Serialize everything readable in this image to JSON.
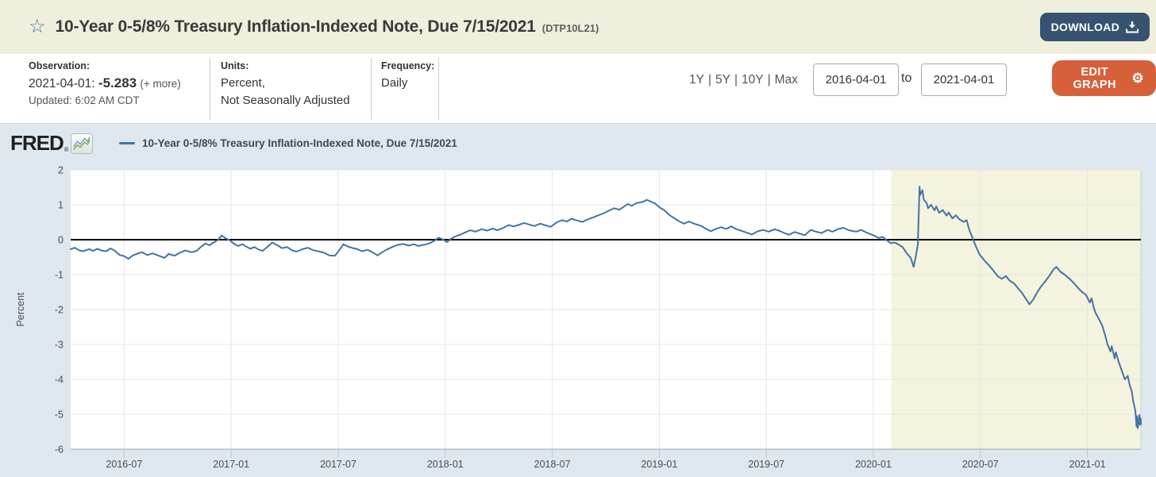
{
  "header": {
    "title": "10-Year 0-5/8% Treasury Inflation-Indexed Note, Due 7/15/2021",
    "series_id": "(DTP10L21)",
    "star_icon": "☆",
    "download_label": "DOWNLOAD"
  },
  "meta": {
    "observation_label": "Observation:",
    "observation_date": "2021-04-01:",
    "observation_value": "-5.283",
    "observation_more": "(+ more)",
    "updated": "Updated: 6:02 AM CDT",
    "units_label": "Units:",
    "units_line1": "Percent,",
    "units_line2": "Not Seasonally Adjusted",
    "frequency_label": "Frequency:",
    "frequency_value": "Daily",
    "range_links": [
      "1Y",
      "5Y",
      "10Y",
      "Max"
    ],
    "range_separator": "|",
    "date_from": "2016-04-01",
    "to_label": "to",
    "date_to": "2021-04-01",
    "edit_graph_label": "EDIT GRAPH",
    "gear_icon": "⚙"
  },
  "chart": {
    "logo_text": "FRED",
    "logo_reg": "®",
    "legend_label": "10-Year 0-5/8% Treasury Inflation-Indexed Note, Due 7/15/2021"
  },
  "colors": {
    "header_bg": "#f0efde",
    "download_bg": "#385271",
    "edit_graph_bg": "#d6603a",
    "panel_bg": "#dee7ee",
    "line": "#4572a7",
    "recession_band": "#f4f3dd"
  },
  "chart_data": {
    "type": "line",
    "title": "10-Year 0-5/8% Treasury Inflation-Indexed Note, Due 7/15/2021",
    "ylabel": "Percent",
    "ylim": [
      -6,
      2
    ],
    "yticks": [
      2,
      1,
      0,
      -1,
      -2,
      -3,
      -4,
      -5,
      -6
    ],
    "xtick_labels": [
      "2016-07",
      "2017-01",
      "2017-07",
      "2018-01",
      "2018-07",
      "2019-01",
      "2019-07",
      "2020-01",
      "2020-07",
      "2021-01"
    ],
    "x_range": [
      "2016-04-01",
      "2021-04-01"
    ],
    "grid": true,
    "legend_position": "top-left",
    "line_color": "#4572a7",
    "zero_line_color": "#000000",
    "recession_band": {
      "start": "2020-02-01",
      "end": "2021-04-01",
      "color": "#f4f3dd"
    },
    "series": [
      {
        "name": "10-Year 0-5/8% Treasury Inflation-Indexed Note, Due 7/15/2021",
        "points": [
          [
            "2016-04-01",
            -0.27
          ],
          [
            "2016-04-08",
            -0.23
          ],
          [
            "2016-04-15",
            -0.3
          ],
          [
            "2016-04-22",
            -0.33
          ],
          [
            "2016-05-02",
            -0.27
          ],
          [
            "2016-05-09",
            -0.32
          ],
          [
            "2016-05-16",
            -0.26
          ],
          [
            "2016-05-23",
            -0.31
          ],
          [
            "2016-06-01",
            -0.33
          ],
          [
            "2016-06-08",
            -0.25
          ],
          [
            "2016-06-15",
            -0.31
          ],
          [
            "2016-06-24",
            -0.44
          ],
          [
            "2016-07-01",
            -0.47
          ],
          [
            "2016-07-08",
            -0.55
          ],
          [
            "2016-07-15",
            -0.46
          ],
          [
            "2016-07-22",
            -0.41
          ],
          [
            "2016-08-01",
            -0.36
          ],
          [
            "2016-08-10",
            -0.44
          ],
          [
            "2016-08-19",
            -0.39
          ],
          [
            "2016-09-01",
            -0.47
          ],
          [
            "2016-09-09",
            -0.52
          ],
          [
            "2016-09-16",
            -0.41
          ],
          [
            "2016-09-26",
            -0.46
          ],
          [
            "2016-10-05",
            -0.37
          ],
          [
            "2016-10-14",
            -0.31
          ],
          [
            "2016-10-25",
            -0.36
          ],
          [
            "2016-11-03",
            -0.32
          ],
          [
            "2016-11-10",
            -0.21
          ],
          [
            "2016-11-18",
            -0.11
          ],
          [
            "2016-11-25",
            -0.16
          ],
          [
            "2016-12-02",
            -0.07
          ],
          [
            "2016-12-09",
            -0.01
          ],
          [
            "2016-12-15",
            0.12
          ],
          [
            "2016-12-22",
            0.04
          ],
          [
            "2016-12-30",
            -0.03
          ],
          [
            "2017-01-06",
            -0.12
          ],
          [
            "2017-01-13",
            -0.18
          ],
          [
            "2017-01-20",
            -0.13
          ],
          [
            "2017-01-27",
            -0.2
          ],
          [
            "2017-02-03",
            -0.26
          ],
          [
            "2017-02-10",
            -0.21
          ],
          [
            "2017-02-17",
            -0.28
          ],
          [
            "2017-02-24",
            -0.32
          ],
          [
            "2017-03-03",
            -0.19
          ],
          [
            "2017-03-10",
            -0.08
          ],
          [
            "2017-03-17",
            -0.14
          ],
          [
            "2017-03-27",
            -0.24
          ],
          [
            "2017-04-05",
            -0.21
          ],
          [
            "2017-04-13",
            -0.3
          ],
          [
            "2017-04-21",
            -0.34
          ],
          [
            "2017-05-01",
            -0.27
          ],
          [
            "2017-05-10",
            -0.23
          ],
          [
            "2017-05-19",
            -0.3
          ],
          [
            "2017-05-30",
            -0.34
          ],
          [
            "2017-06-08",
            -0.38
          ],
          [
            "2017-06-16",
            -0.45
          ],
          [
            "2017-06-26",
            -0.46
          ],
          [
            "2017-07-03",
            -0.29
          ],
          [
            "2017-07-10",
            -0.13
          ],
          [
            "2017-07-18",
            -0.2
          ],
          [
            "2017-07-26",
            -0.24
          ],
          [
            "2017-08-03",
            -0.27
          ],
          [
            "2017-08-11",
            -0.33
          ],
          [
            "2017-08-21",
            -0.29
          ],
          [
            "2017-08-31",
            -0.38
          ],
          [
            "2017-09-07",
            -0.45
          ],
          [
            "2017-09-14",
            -0.37
          ],
          [
            "2017-09-22",
            -0.29
          ],
          [
            "2017-10-02",
            -0.21
          ],
          [
            "2017-10-11",
            -0.15
          ],
          [
            "2017-10-20",
            -0.12
          ],
          [
            "2017-10-30",
            -0.17
          ],
          [
            "2017-11-08",
            -0.13
          ],
          [
            "2017-11-16",
            -0.18
          ],
          [
            "2017-11-27",
            -0.14
          ],
          [
            "2017-12-05",
            -0.1
          ],
          [
            "2017-12-13",
            -0.03
          ],
          [
            "2017-12-20",
            0.06
          ],
          [
            "2017-12-28",
            0.0
          ],
          [
            "2018-01-04",
            -0.07
          ],
          [
            "2018-01-11",
            0.03
          ],
          [
            "2018-01-19",
            0.1
          ],
          [
            "2018-01-29",
            0.16
          ],
          [
            "2018-02-06",
            0.22
          ],
          [
            "2018-02-14",
            0.27
          ],
          [
            "2018-02-22",
            0.23
          ],
          [
            "2018-03-02",
            0.3
          ],
          [
            "2018-03-12",
            0.26
          ],
          [
            "2018-03-21",
            0.32
          ],
          [
            "2018-03-29",
            0.27
          ],
          [
            "2018-04-09",
            0.34
          ],
          [
            "2018-04-18",
            0.42
          ],
          [
            "2018-04-26",
            0.38
          ],
          [
            "2018-05-04",
            0.42
          ],
          [
            "2018-05-14",
            0.48
          ],
          [
            "2018-05-23",
            0.43
          ],
          [
            "2018-06-01",
            0.39
          ],
          [
            "2018-06-11",
            0.46
          ],
          [
            "2018-06-20",
            0.41
          ],
          [
            "2018-06-29",
            0.37
          ],
          [
            "2018-07-09",
            0.5
          ],
          [
            "2018-07-18",
            0.56
          ],
          [
            "2018-07-26",
            0.52
          ],
          [
            "2018-08-03",
            0.6
          ],
          [
            "2018-08-13",
            0.55
          ],
          [
            "2018-08-22",
            0.51
          ],
          [
            "2018-08-31",
            0.58
          ],
          [
            "2018-09-10",
            0.64
          ],
          [
            "2018-09-19",
            0.7
          ],
          [
            "2018-09-27",
            0.75
          ],
          [
            "2018-10-05",
            0.82
          ],
          [
            "2018-10-15",
            0.9
          ],
          [
            "2018-10-24",
            0.86
          ],
          [
            "2018-11-01",
            0.94
          ],
          [
            "2018-11-08",
            1.02
          ],
          [
            "2018-11-15",
            0.97
          ],
          [
            "2018-11-23",
            1.05
          ],
          [
            "2018-12-03",
            1.08
          ],
          [
            "2018-12-10",
            1.14
          ],
          [
            "2018-12-17",
            1.09
          ],
          [
            "2018-12-24",
            1.04
          ],
          [
            "2019-01-02",
            0.92
          ],
          [
            "2019-01-10",
            0.84
          ],
          [
            "2019-01-18",
            0.71
          ],
          [
            "2019-01-28",
            0.6
          ],
          [
            "2019-02-05",
            0.52
          ],
          [
            "2019-02-13",
            0.46
          ],
          [
            "2019-02-21",
            0.52
          ],
          [
            "2019-03-01",
            0.45
          ],
          [
            "2019-03-11",
            0.4
          ],
          [
            "2019-03-20",
            0.31
          ],
          [
            "2019-03-28",
            0.24
          ],
          [
            "2019-04-05",
            0.3
          ],
          [
            "2019-04-15",
            0.36
          ],
          [
            "2019-04-24",
            0.31
          ],
          [
            "2019-05-02",
            0.38
          ],
          [
            "2019-05-10",
            0.31
          ],
          [
            "2019-05-20",
            0.25
          ],
          [
            "2019-05-30",
            0.19
          ],
          [
            "2019-06-07",
            0.15
          ],
          [
            "2019-06-17",
            0.24
          ],
          [
            "2019-06-26",
            0.28
          ],
          [
            "2019-07-05",
            0.23
          ],
          [
            "2019-07-15",
            0.3
          ],
          [
            "2019-07-24",
            0.25
          ],
          [
            "2019-08-01",
            0.19
          ],
          [
            "2019-08-09",
            0.14
          ],
          [
            "2019-08-19",
            0.22
          ],
          [
            "2019-08-28",
            0.17
          ],
          [
            "2019-09-06",
            0.13
          ],
          [
            "2019-09-16",
            0.28
          ],
          [
            "2019-09-25",
            0.23
          ],
          [
            "2019-10-04",
            0.19
          ],
          [
            "2019-10-14",
            0.28
          ],
          [
            "2019-10-23",
            0.23
          ],
          [
            "2019-11-01",
            0.3
          ],
          [
            "2019-11-11",
            0.34
          ],
          [
            "2019-11-20",
            0.27
          ],
          [
            "2019-12-02",
            0.23
          ],
          [
            "2019-12-11",
            0.28
          ],
          [
            "2019-12-19",
            0.21
          ],
          [
            "2020-01-02",
            0.12
          ],
          [
            "2020-01-10",
            0.05
          ],
          [
            "2020-01-17",
            0.08
          ],
          [
            "2020-01-24",
            -0.02
          ],
          [
            "2020-01-31",
            -0.1
          ],
          [
            "2020-02-07",
            -0.08
          ],
          [
            "2020-02-14",
            -0.14
          ],
          [
            "2020-02-21",
            -0.22
          ],
          [
            "2020-02-27",
            -0.38
          ],
          [
            "2020-03-04",
            -0.52
          ],
          [
            "2020-03-09",
            -0.78
          ],
          [
            "2020-03-12",
            -0.52
          ],
          [
            "2020-03-16",
            -0.15
          ],
          [
            "2020-03-19",
            1.52
          ],
          [
            "2020-03-20",
            1.28
          ],
          [
            "2020-03-24",
            1.42
          ],
          [
            "2020-03-26",
            1.15
          ],
          [
            "2020-03-31",
            1.05
          ],
          [
            "2020-04-03",
            0.9
          ],
          [
            "2020-04-08",
            1.0
          ],
          [
            "2020-04-14",
            0.84
          ],
          [
            "2020-04-17",
            0.95
          ],
          [
            "2020-04-22",
            0.77
          ],
          [
            "2020-04-28",
            0.85
          ],
          [
            "2020-05-04",
            0.69
          ],
          [
            "2020-05-08",
            0.78
          ],
          [
            "2020-05-14",
            0.61
          ],
          [
            "2020-05-20",
            0.7
          ],
          [
            "2020-05-27",
            0.57
          ],
          [
            "2020-06-03",
            0.51
          ],
          [
            "2020-06-08",
            0.56
          ],
          [
            "2020-06-12",
            0.3
          ],
          [
            "2020-06-18",
            0.05
          ],
          [
            "2020-06-24",
            -0.2
          ],
          [
            "2020-06-30",
            -0.42
          ],
          [
            "2020-07-08",
            -0.6
          ],
          [
            "2020-07-15",
            -0.72
          ],
          [
            "2020-07-23",
            -0.88
          ],
          [
            "2020-07-31",
            -1.05
          ],
          [
            "2020-08-07",
            -1.12
          ],
          [
            "2020-08-14",
            -1.04
          ],
          [
            "2020-08-21",
            -1.18
          ],
          [
            "2020-08-28",
            -1.25
          ],
          [
            "2020-09-04",
            -1.38
          ],
          [
            "2020-09-11",
            -1.52
          ],
          [
            "2020-09-18",
            -1.7
          ],
          [
            "2020-09-24",
            -1.85
          ],
          [
            "2020-09-30",
            -1.72
          ],
          [
            "2020-10-07",
            -1.5
          ],
          [
            "2020-10-14",
            -1.32
          ],
          [
            "2020-10-21",
            -1.18
          ],
          [
            "2020-10-28",
            -1.02
          ],
          [
            "2020-11-04",
            -0.85
          ],
          [
            "2020-11-09",
            -0.78
          ],
          [
            "2020-11-16",
            -0.92
          ],
          [
            "2020-11-23",
            -1.0
          ],
          [
            "2020-11-30",
            -1.1
          ],
          [
            "2020-12-07",
            -1.22
          ],
          [
            "2020-12-14",
            -1.35
          ],
          [
            "2020-12-21",
            -1.48
          ],
          [
            "2020-12-29",
            -1.58
          ],
          [
            "2021-01-05",
            -1.8
          ],
          [
            "2021-01-08",
            -1.68
          ],
          [
            "2021-01-12",
            -1.95
          ],
          [
            "2021-01-15",
            -2.1
          ],
          [
            "2021-01-20",
            -2.25
          ],
          [
            "2021-01-26",
            -2.45
          ],
          [
            "2021-02-01",
            -2.75
          ],
          [
            "2021-02-05",
            -3.0
          ],
          [
            "2021-02-10",
            -3.2
          ],
          [
            "2021-02-12",
            -3.05
          ],
          [
            "2021-02-17",
            -3.4
          ],
          [
            "2021-02-19",
            -3.22
          ],
          [
            "2021-02-24",
            -3.5
          ],
          [
            "2021-03-01",
            -3.85
          ],
          [
            "2021-03-04",
            -4.0
          ],
          [
            "2021-03-09",
            -3.9
          ],
          [
            "2021-03-12",
            -4.15
          ],
          [
            "2021-03-16",
            -4.35
          ],
          [
            "2021-03-18",
            -4.6
          ],
          [
            "2021-03-22",
            -4.9
          ],
          [
            "2021-03-24",
            -5.35
          ],
          [
            "2021-03-25",
            -5.05
          ],
          [
            "2021-03-26",
            -5.4
          ],
          [
            "2021-03-29",
            -5.02
          ],
          [
            "2021-03-30",
            -5.3
          ],
          [
            "2021-03-31",
            -5.12
          ],
          [
            "2021-04-01",
            -5.283
          ]
        ]
      }
    ]
  }
}
